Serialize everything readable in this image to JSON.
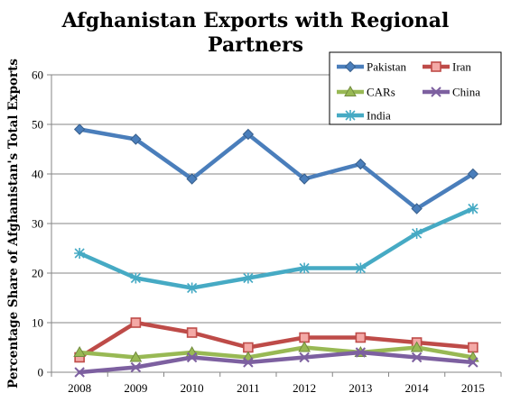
{
  "chart_data": {
    "type": "line",
    "title": "Afghanistan Exports with Regional Partners",
    "title_lines": [
      "Afghanistan Exports with Regional",
      "Partners"
    ],
    "xlabel": "",
    "ylabel": "Percentage Share of Afghanistan's Total Exports",
    "ylim": [
      0,
      60
    ],
    "yticks": [
      0,
      10,
      20,
      30,
      40,
      50,
      60
    ],
    "categories": [
      "2008",
      "2009",
      "2010",
      "2011",
      "2012",
      "2013",
      "2014",
      "2015"
    ],
    "grid": "horizontal",
    "legend_position": "top-right",
    "series": [
      {
        "name": "Pakistan",
        "color": "#4a7ebb",
        "marker": "diamond",
        "values": [
          49,
          47,
          39,
          48,
          39,
          42,
          33,
          40
        ]
      },
      {
        "name": "Iran",
        "color": "#be4b48",
        "marker": "square",
        "values": [
          3,
          10,
          8,
          5,
          7,
          7,
          6,
          5
        ]
      },
      {
        "name": "CARs",
        "color": "#98b954",
        "marker": "triangle",
        "values": [
          4,
          3,
          4,
          3,
          5,
          4,
          5,
          3
        ]
      },
      {
        "name": "China",
        "color": "#7d60a0",
        "marker": "x",
        "values": [
          0,
          1,
          3,
          2,
          3,
          4,
          3,
          2
        ]
      },
      {
        "name": "India",
        "color": "#46aac4",
        "marker": "star",
        "values": [
          24,
          19,
          17,
          19,
          21,
          21,
          28,
          33
        ]
      }
    ]
  }
}
